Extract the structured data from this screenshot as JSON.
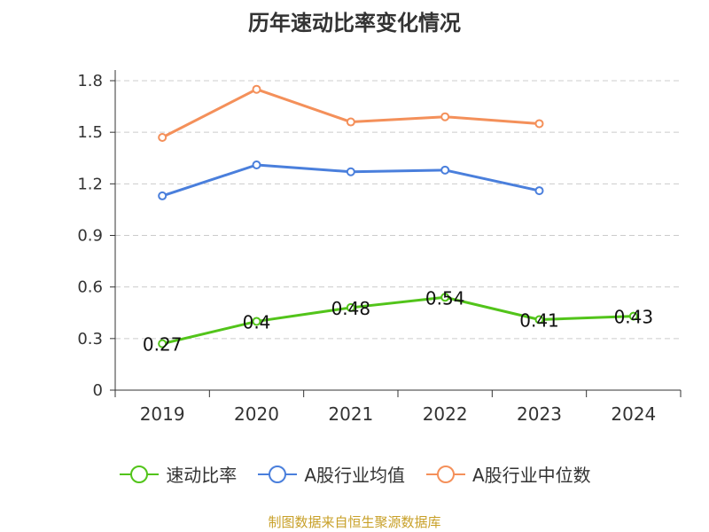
{
  "chart_data": {
    "type": "line",
    "title": "历年速动比率变化情况",
    "categories": [
      "2019",
      "2020",
      "2021",
      "2022",
      "2023",
      "2024"
    ],
    "ylim": [
      0,
      1.8
    ],
    "yticks": [
      "0",
      "0.3",
      "0.6",
      "0.9",
      "1.2",
      "1.5",
      "1.8"
    ],
    "grid": true,
    "legend_position": "bottom",
    "series": [
      {
        "name": "速动比率",
        "color": "#52c41a",
        "values": [
          0.27,
          0.4,
          0.48,
          0.54,
          0.41,
          0.43
        ],
        "labels": [
          "0.27",
          "0.4",
          "0.48",
          "0.54",
          "0.41",
          "0.43"
        ]
      },
      {
        "name": "A股行业均值",
        "color": "#4a7fdc",
        "values": [
          1.13,
          1.31,
          1.27,
          1.28,
          1.16,
          null
        ]
      },
      {
        "name": "A股行业中位数",
        "color": "#f4905a",
        "values": [
          1.47,
          1.75,
          1.56,
          1.59,
          1.55,
          null
        ]
      }
    ]
  },
  "source": "制图数据来自恒生聚源数据库"
}
